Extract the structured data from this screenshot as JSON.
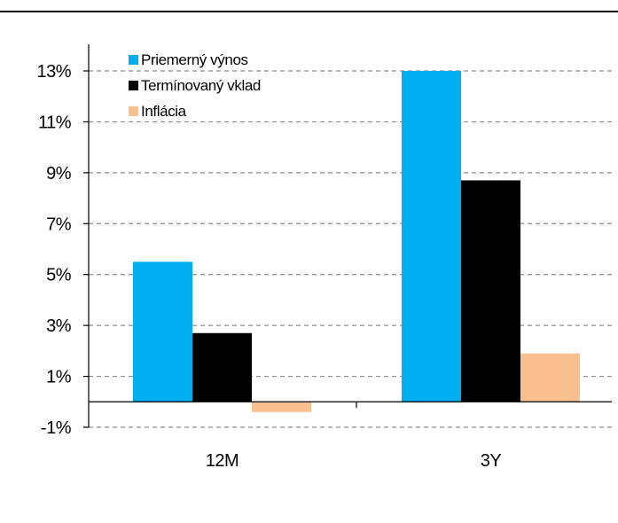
{
  "chart_data": {
    "type": "bar",
    "categories": [
      "12M",
      "3Y"
    ],
    "series": [
      {
        "name": "Priemerný výnos",
        "color": "#00AEEF",
        "values": [
          5.5,
          13.0
        ]
      },
      {
        "name": "Termínovaný vklad",
        "color": "#000000",
        "values": [
          2.7,
          8.7
        ]
      },
      {
        "name": "Inflácia",
        "color": "#F9C08F",
        "values": [
          -0.4,
          1.9
        ]
      }
    ],
    "ylim": [
      -1,
      13
    ],
    "yticks": [
      -1,
      1,
      3,
      5,
      7,
      9,
      11,
      13
    ],
    "ytick_labels": [
      "-1%",
      "1%",
      "3%",
      "5%",
      "7%",
      "9%",
      "11%",
      "13%"
    ],
    "grid": "dashed-horizontal",
    "legend_placement": "top-left",
    "title": "",
    "xlabel": "",
    "ylabel": ""
  }
}
